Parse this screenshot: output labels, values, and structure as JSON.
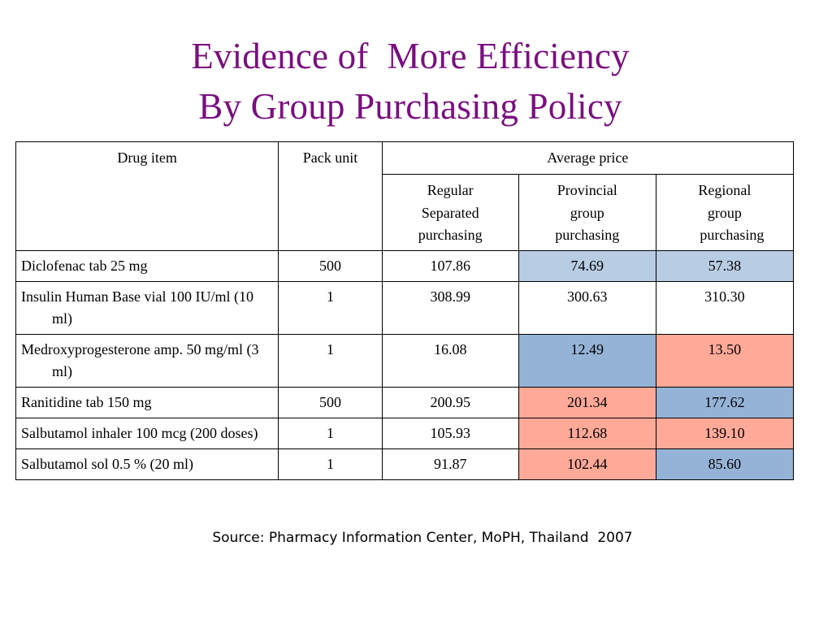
{
  "slide": {
    "title_line1": "Evidence of  More Efficiency",
    "title_line2": "By Group Purchasing Policy",
    "source": "Source: Pharmacy Information Center, MoPH, Thailand  2007"
  },
  "colors": {
    "title": "#7a0f7f",
    "light_blue": "#b8cce4",
    "blue": "#95b3d7",
    "salmon": "#ffa999",
    "white": "#ffffff"
  },
  "table": {
    "headers": {
      "drug_item": "Drug item",
      "pack_unit": "Pack unit",
      "average_price": "Average price",
      "regular": [
        "Regular",
        "Separated",
        "purchasing"
      ],
      "provincial": [
        "Provincial",
        "group",
        "purchasing"
      ],
      "regional": [
        "Regional",
        "group",
        "    purchasing"
      ]
    },
    "rows": [
      {
        "drug": "Diclofenac tab 25 mg",
        "pack": "500",
        "regular": "107.86",
        "provincial": "74.69",
        "regional": "57.38",
        "provincial_color": "#b8cce4",
        "regional_color": "#b8cce4"
      },
      {
        "drug": "Insulin Human Base vial 100 IU/ml (10 ml)",
        "pack": "1",
        "regular": "308.99",
        "provincial": "300.63",
        "regional": "310.30",
        "provincial_color": "#ffffff",
        "regional_color": "#ffffff"
      },
      {
        "drug": "Medroxyprogesterone amp. 50 mg/ml (3 ml)",
        "pack": "1",
        "regular": "16.08",
        "provincial": "12.49",
        "regional": "13.50",
        "provincial_color": "#95b3d7",
        "regional_color": "#ffa999"
      },
      {
        "drug": "Ranitidine tab 150 mg",
        "pack": "500",
        "regular": "200.95",
        "provincial": "201.34",
        "regional": "177.62",
        "provincial_color": "#ffa999",
        "regional_color": "#95b3d7"
      },
      {
        "drug": "Salbutamol inhaler 100 mcg (200 doses)",
        "pack": "1",
        "regular": "105.93",
        "provincial": "112.68",
        "regional": "139.10",
        "provincial_color": "#ffa999",
        "regional_color": "#ffa999"
      },
      {
        "drug": "Salbutamol sol 0.5 % (20 ml)",
        "pack": "1",
        "regular": "91.87",
        "provincial": "102.44",
        "regional": "85.60",
        "provincial_color": "#ffa999",
        "regional_color": "#95b3d7"
      }
    ]
  }
}
